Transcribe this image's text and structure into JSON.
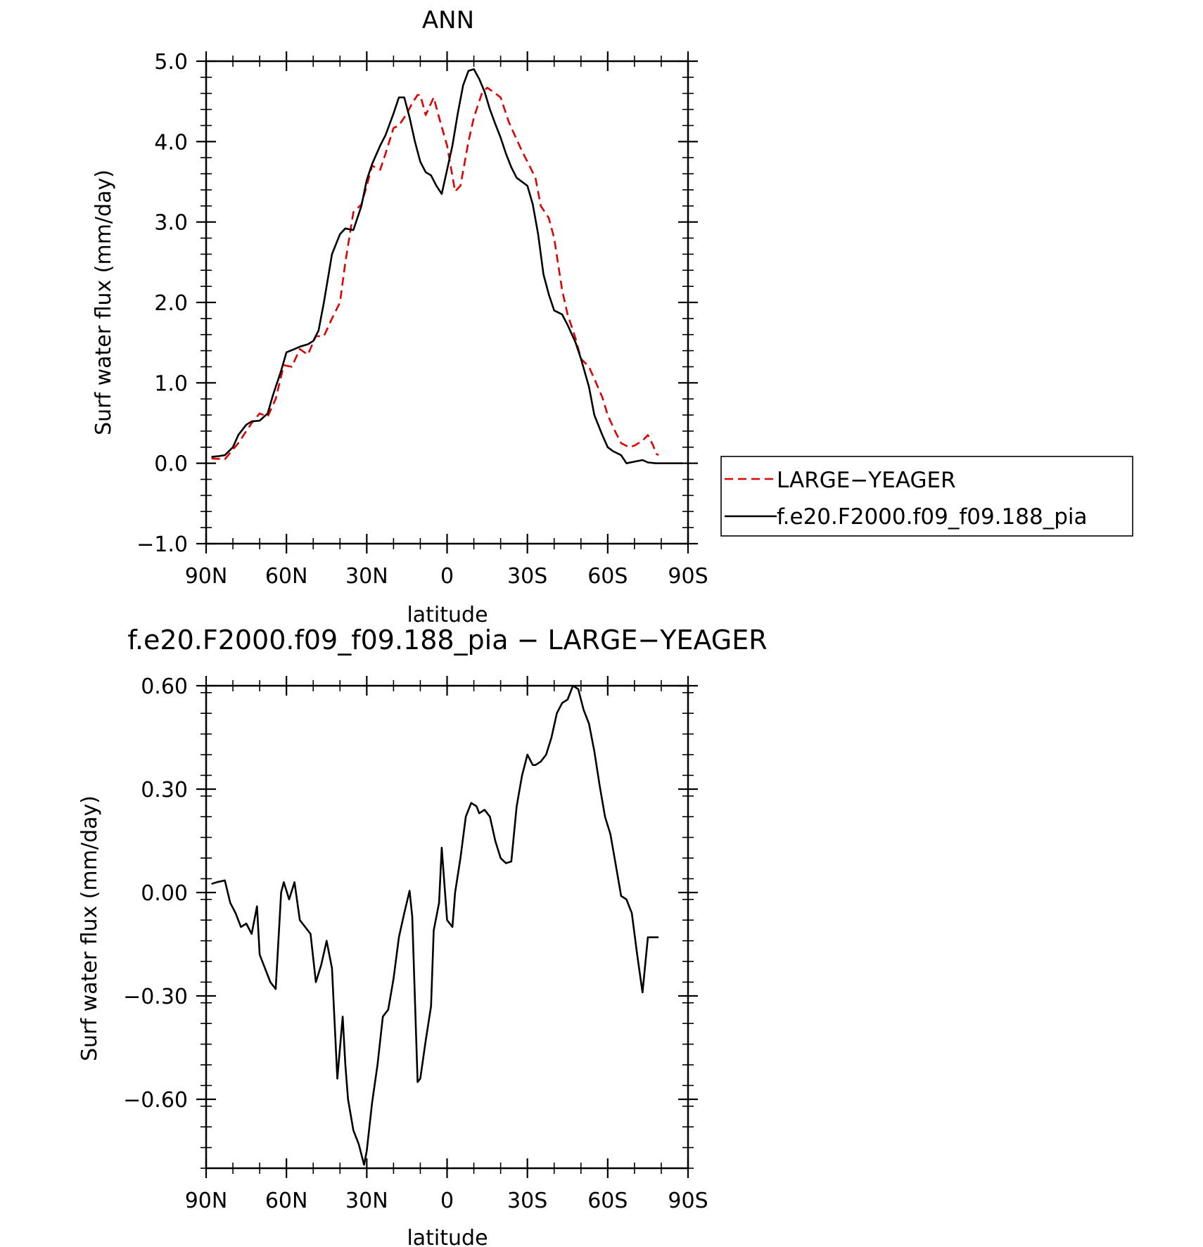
{
  "chart_data": [
    {
      "type": "line",
      "title": "ANN",
      "xlabel": "latitude",
      "ylabel": "Surf water flux (mm/day)",
      "xlim": [
        90,
        -90
      ],
      "ylim": [
        -1.0,
        5.0
      ],
      "x_ticks": [
        90,
        60,
        30,
        0,
        -30,
        -60,
        -90
      ],
      "x_tick_labels": [
        "90N",
        "60N",
        "30N",
        "0",
        "30S",
        "60S",
        "90S"
      ],
      "y_ticks": [
        -1.0,
        0.0,
        1.0,
        2.0,
        3.0,
        4.0,
        5.0
      ],
      "y_tick_labels": [
        "−1.0",
        "0.0",
        "1.0",
        "2.0",
        "3.0",
        "4.0",
        "5.0"
      ],
      "grid": false,
      "legend": {
        "placement": "right",
        "entries": [
          "LARGE−YEAGER",
          "f.e20.F2000.f09_f09.188_pia"
        ]
      },
      "series": [
        {
          "name": "LARGE−YEAGER",
          "color": "#e00000",
          "style": "dashed",
          "x": [
            88,
            83,
            78,
            73,
            70,
            67,
            64,
            61,
            58,
            55,
            52,
            49,
            46,
            43,
            40,
            38,
            35,
            32,
            30,
            28,
            25,
            23,
            20,
            18,
            15,
            13,
            11,
            10,
            8,
            5,
            3,
            0,
            -3,
            -5,
            -8,
            -10,
            -13,
            -15,
            -18,
            -20,
            -23,
            -25,
            -28,
            -30,
            -33,
            -35,
            -38,
            -40,
            -43,
            -45,
            -48,
            -50,
            -53,
            -55,
            -58,
            -60,
            -63,
            -65,
            -68,
            -70,
            -73,
            -75,
            -77,
            -78,
            -79
          ],
          "y": [
            0.06,
            0.05,
            0.25,
            0.5,
            0.62,
            0.58,
            0.8,
            1.22,
            1.2,
            1.42,
            1.35,
            1.58,
            1.58,
            1.8,
            2.0,
            2.5,
            3.12,
            3.22,
            3.45,
            3.7,
            3.65,
            3.85,
            4.17,
            4.2,
            4.35,
            4.48,
            4.58,
            4.58,
            4.33,
            4.55,
            4.3,
            3.95,
            3.38,
            3.45,
            4.0,
            4.3,
            4.6,
            4.67,
            4.6,
            4.55,
            4.25,
            4.1,
            3.88,
            3.75,
            3.55,
            3.2,
            3.05,
            2.8,
            2.15,
            1.85,
            1.55,
            1.3,
            1.2,
            1.05,
            0.82,
            0.6,
            0.38,
            0.25,
            0.2,
            0.22,
            0.28,
            0.35,
            0.22,
            0.12,
            0.1
          ]
        },
        {
          "name": "f.e20.F2000.f09_f09.188_pia",
          "color": "#000000",
          "style": "solid",
          "x": [
            88,
            85,
            83,
            80,
            78,
            75,
            73,
            70,
            67,
            65,
            62,
            60,
            57,
            55,
            52,
            50,
            48,
            46,
            43,
            40,
            38,
            35,
            32,
            30,
            28,
            25,
            23,
            20,
            18,
            16,
            14,
            12,
            10,
            8,
            6,
            4,
            2,
            0,
            -2,
            -4,
            -6,
            -8,
            -10,
            -12,
            -14,
            -16,
            -18,
            -20,
            -22,
            -24,
            -26,
            -28,
            -30,
            -32,
            -34,
            -36,
            -38,
            -40,
            -43,
            -45,
            -48,
            -50,
            -53,
            -55,
            -58,
            -60,
            -62,
            -65,
            -67,
            -70,
            -73,
            -75,
            -78,
            -80,
            -83,
            -85,
            -88
          ],
          "y": [
            0.08,
            0.09,
            0.1,
            0.2,
            0.35,
            0.48,
            0.52,
            0.53,
            0.62,
            0.85,
            1.15,
            1.38,
            1.42,
            1.45,
            1.48,
            1.52,
            1.65,
            2.0,
            2.6,
            2.85,
            2.92,
            2.9,
            3.2,
            3.52,
            3.72,
            3.95,
            4.08,
            4.35,
            4.55,
            4.55,
            4.3,
            4.0,
            3.75,
            3.62,
            3.58,
            3.45,
            3.35,
            3.65,
            3.95,
            4.35,
            4.7,
            4.88,
            4.9,
            4.78,
            4.62,
            4.4,
            4.22,
            4.05,
            3.85,
            3.68,
            3.55,
            3.5,
            3.45,
            3.22,
            2.85,
            2.35,
            2.1,
            1.9,
            1.85,
            1.72,
            1.5,
            1.3,
            0.95,
            0.6,
            0.35,
            0.2,
            0.15,
            0.1,
            0.0,
            0.02,
            0.04,
            0.01,
            0.0,
            0.0,
            0.0,
            0.0,
            0.0
          ]
        }
      ]
    },
    {
      "type": "line",
      "title": "f.e20.F2000.f09_f09.188_pia − LARGE−YEAGER",
      "xlabel": "latitude",
      "ylabel": "Surf water flux (mm/day)",
      "xlim": [
        90,
        -90
      ],
      "ylim": [
        -0.8,
        0.6
      ],
      "x_ticks": [
        90,
        60,
        30,
        0,
        -30,
        -60,
        -90
      ],
      "x_tick_labels": [
        "90N",
        "60N",
        "30N",
        "0",
        "30S",
        "60S",
        "90S"
      ],
      "y_ticks": [
        -0.6,
        -0.3,
        0.0,
        0.3,
        0.6
      ],
      "y_tick_labels": [
        "−0.60",
        "−0.30",
        "0.00",
        "0.30",
        "0.60"
      ],
      "grid": false,
      "series": [
        {
          "color": "#000000",
          "style": "solid",
          "x": [
            88,
            86,
            83,
            81,
            79,
            77,
            75,
            73,
            71,
            70,
            68,
            66,
            64,
            62,
            61,
            59,
            57,
            55,
            53,
            51,
            49,
            47,
            45,
            43,
            41,
            39,
            38,
            37,
            35,
            33,
            31,
            30,
            28,
            26,
            24,
            22,
            20,
            18,
            16,
            14,
            13,
            11,
            10,
            8,
            6,
            5,
            3,
            2,
            0,
            -2,
            -3,
            -5,
            -7,
            -9,
            -11,
            -12,
            -14,
            -16,
            -18,
            -20,
            -22,
            -24,
            -26,
            -28,
            -30,
            -32,
            -33,
            -35,
            -37,
            -39,
            -41,
            -43,
            -45,
            -47,
            -49,
            -51,
            -53,
            -55,
            -57,
            -59,
            -61,
            -63,
            -65,
            -67,
            -69,
            -71,
            -73,
            -75,
            -77,
            -78,
            -79
          ],
          "y": [
            0.025,
            0.03,
            0.035,
            -0.03,
            -0.06,
            -0.1,
            -0.09,
            -0.12,
            -0.04,
            -0.18,
            -0.22,
            -0.26,
            -0.28,
            0.0,
            0.03,
            -0.02,
            0.03,
            -0.08,
            -0.1,
            -0.12,
            -0.26,
            -0.21,
            -0.14,
            -0.22,
            -0.54,
            -0.36,
            -0.5,
            -0.6,
            -0.69,
            -0.73,
            -0.79,
            -0.75,
            -0.61,
            -0.5,
            -0.36,
            -0.34,
            -0.25,
            -0.13,
            -0.06,
            0.005,
            -0.07,
            -0.55,
            -0.54,
            -0.43,
            -0.33,
            -0.11,
            -0.03,
            0.13,
            -0.08,
            -0.1,
            0.0,
            0.1,
            0.22,
            0.26,
            0.25,
            0.23,
            0.24,
            0.22,
            0.15,
            0.1,
            0.085,
            0.09,
            0.25,
            0.34,
            0.4,
            0.37,
            0.37,
            0.38,
            0.4,
            0.45,
            0.52,
            0.55,
            0.56,
            0.6,
            0.59,
            0.53,
            0.49,
            0.41,
            0.31,
            0.22,
            0.17,
            0.08,
            -0.01,
            -0.02,
            -0.06,
            -0.18,
            -0.29,
            -0.13,
            -0.13,
            -0.13,
            -0.13
          ]
        }
      ]
    }
  ]
}
